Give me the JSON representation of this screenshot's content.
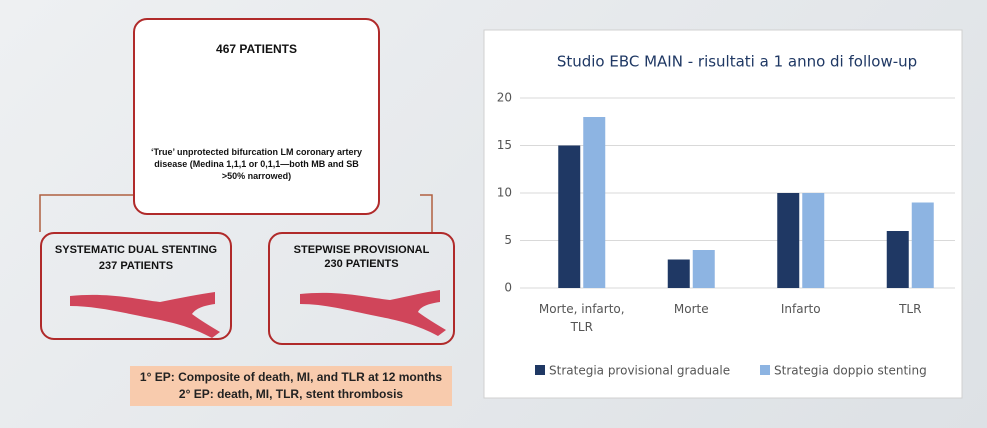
{
  "diagram": {
    "top": {
      "title": "467 PATIENTS",
      "caption": "‘True’ unprotected bifurcation LM coronary artery disease (Medina 1,1,1 or 0,1,1—both MB and SB >50% narrowed)"
    },
    "left": {
      "title": "SYSTEMATIC DUAL STENTING",
      "subtitle": "237 PATIENTS"
    },
    "right": {
      "title": "STEPWISE PROVISIONAL",
      "subtitle": "230 PATIENTS"
    },
    "endpoints": [
      "1° EP: Composite of death, MI, and TLR at 12 months",
      "2° EP: death, MI, TLR, stent thrombosis"
    ]
  },
  "chart_data": {
    "type": "bar",
    "title": "Studio EBC MAIN - risultati a 1 anno di follow-up",
    "categories": [
      "Morte, infarto, TLR",
      "Morte",
      "Infarto",
      "TLR"
    ],
    "series": [
      {
        "name": "Strategia provisional graduale",
        "color": "#1f3864",
        "values": [
          15,
          3,
          10,
          6
        ]
      },
      {
        "name": "Strategia doppio stenting",
        "color": "#8db4e2",
        "values": [
          18,
          4,
          10,
          9
        ]
      }
    ],
    "ylim": [
      0,
      20
    ],
    "yticks": [
      0,
      5,
      10,
      15,
      20
    ],
    "grid": true,
    "legend": "bottom"
  }
}
